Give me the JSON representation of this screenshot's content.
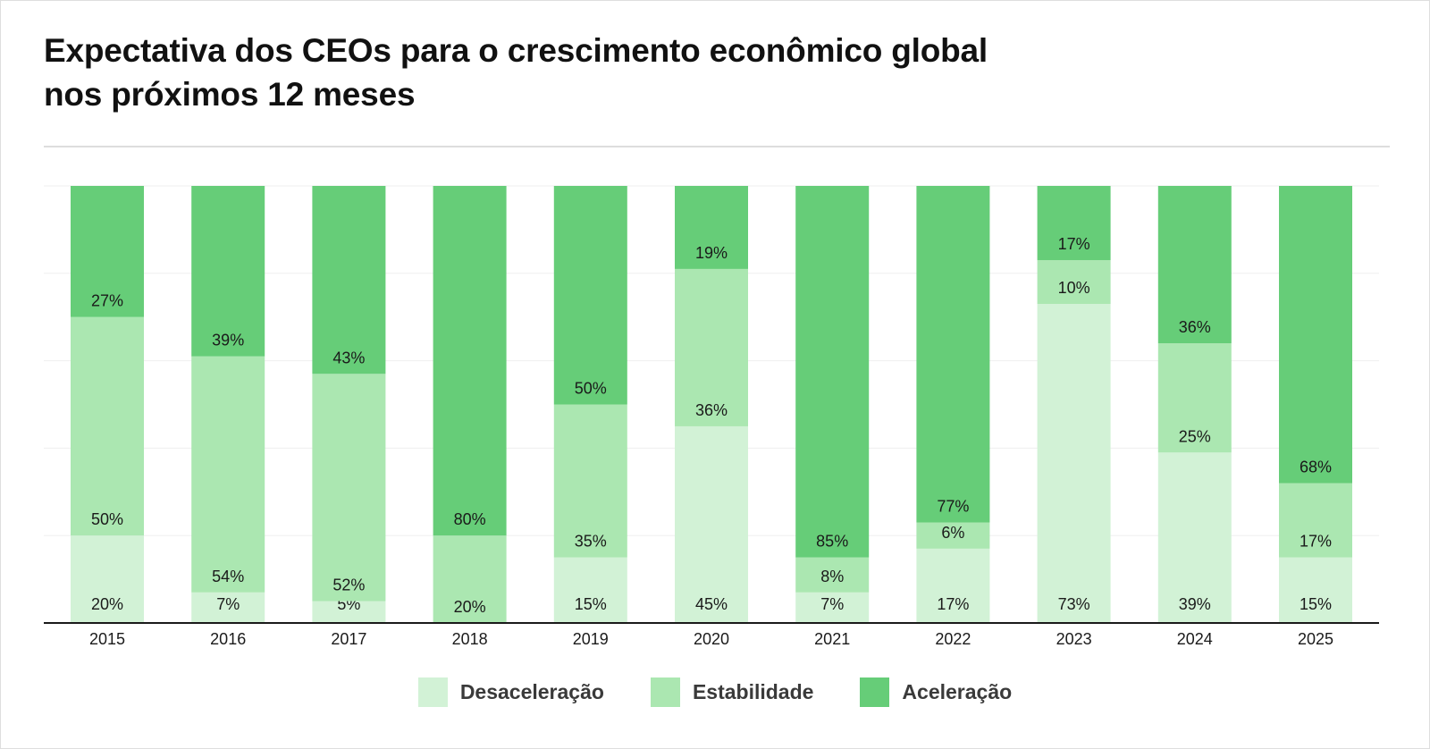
{
  "title_line1": "Expectativa dos CEOs para o crescimento econômico global",
  "title_line2": "nos próximos 12 meses",
  "chart_data": {
    "type": "bar",
    "stacked": true,
    "categories": [
      "2015",
      "2016",
      "2017",
      "2018",
      "2019",
      "2020",
      "2021",
      "2022",
      "2023",
      "2024",
      "2025"
    ],
    "series": [
      {
        "name": "Desaceleração",
        "color": "#d2f2d6",
        "values": [
          20,
          7,
          5,
          0,
          15,
          45,
          7,
          17,
          73,
          39,
          15
        ],
        "labels": [
          "20%",
          "7%",
          "5%",
          "",
          "15%",
          "45%",
          "7%",
          "17%",
          "73%",
          "39%",
          "15%"
        ]
      },
      {
        "name": "Estabilidade",
        "color": "#abe7b1",
        "values": [
          50,
          54,
          52,
          20,
          35,
          36,
          8,
          6,
          10,
          25,
          17
        ],
        "labels": [
          "50%",
          "54%",
          "52%",
          "20%",
          "35%",
          "36%",
          "8%",
          "6%",
          "10%",
          "25%",
          "17%"
        ]
      },
      {
        "name": "Aceleração",
        "color": "#66cd78",
        "values": [
          27,
          39,
          43,
          80,
          50,
          19,
          85,
          77,
          17,
          36,
          68
        ],
        "labels": [
          "27%",
          "39%",
          "43%",
          "80%",
          "50%",
          "19%",
          "85%",
          "77%",
          "17%",
          "36%",
          "68%"
        ]
      }
    ],
    "ylim": [
      0,
      100
    ],
    "grid": true,
    "legend": "bottom-center"
  }
}
